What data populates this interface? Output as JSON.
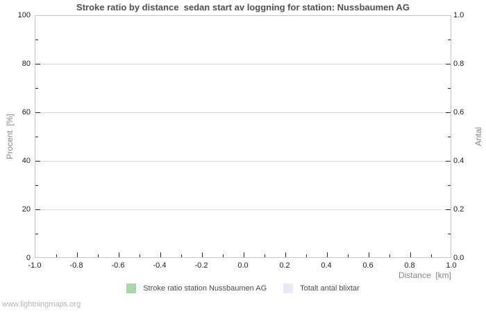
{
  "watermark": "www.lightningmaps.org",
  "colors": {
    "background": "#ffffff",
    "plot_border": "#c4c4c4",
    "gridline": "#d8d8d8",
    "tick_mark": "#222222",
    "title_text": "#4f4f4f",
    "axis_title_text": "#848484",
    "tick_label_text": "#1a1a1a",
    "legend_text": "#4a4a4a",
    "watermark_text": "#b2b2b2",
    "series_stroke_ratio": "#a8d8a8",
    "series_total_strokes": "#e8e8f6"
  },
  "chart_data": {
    "type": "line",
    "title": "Stroke ratio by distance  sedan start av loggning for station: Nussbaumen AG",
    "xlabel": "Distance  [km]",
    "ylabel_left": "Procent  [%]",
    "ylabel_right": "Antal",
    "xlim": [
      -1.0,
      1.0
    ],
    "ylim_left": [
      0,
      100
    ],
    "ylim_right": [
      0.0,
      1.0
    ],
    "grid": "horizontal-majors-only",
    "legend_position": "bottom-center",
    "x_major_values": [
      -1.0,
      -0.8,
      -0.6,
      -0.4,
      -0.2,
      0.0,
      0.2,
      0.4,
      0.6,
      0.8,
      1.0
    ],
    "x_tick_labels": [
      "-1.0",
      "-0.8",
      "-0.6",
      "-0.4",
      "-0.2",
      "0.0",
      "0.2",
      "0.4",
      "0.6",
      "0.8",
      "1.0"
    ],
    "x_minor_values": [
      -0.9,
      -0.7,
      -0.5,
      -0.3,
      -0.1,
      0.1,
      0.3,
      0.5,
      0.7,
      0.9
    ],
    "y_major_values": [
      0,
      20,
      40,
      60,
      80,
      100
    ],
    "y_left_tick_labels": [
      "0",
      "20",
      "40",
      "60",
      "80",
      "100"
    ],
    "y_right_tick_labels": [
      "0.0",
      "0.2",
      "0.4",
      "0.6",
      "0.8",
      "1.0"
    ],
    "y_minor_values": [
      10,
      30,
      50,
      70,
      90
    ],
    "legend": [
      {
        "label": "Stroke ratio station Nussbaumen AG",
        "color": "#a8d8a8"
      },
      {
        "label": "Totalt antal blixtar",
        "color": "#e8e8f6"
      }
    ],
    "series": [
      {
        "name": "Stroke ratio station Nussbaumen AG",
        "axis": "left",
        "color": "#a8d8a8",
        "x": [],
        "values": []
      },
      {
        "name": "Totalt antal blixtar",
        "axis": "right",
        "color": "#e8e8f6",
        "x": [],
        "values": []
      }
    ],
    "note": "empty plot - no data points rendered"
  }
}
